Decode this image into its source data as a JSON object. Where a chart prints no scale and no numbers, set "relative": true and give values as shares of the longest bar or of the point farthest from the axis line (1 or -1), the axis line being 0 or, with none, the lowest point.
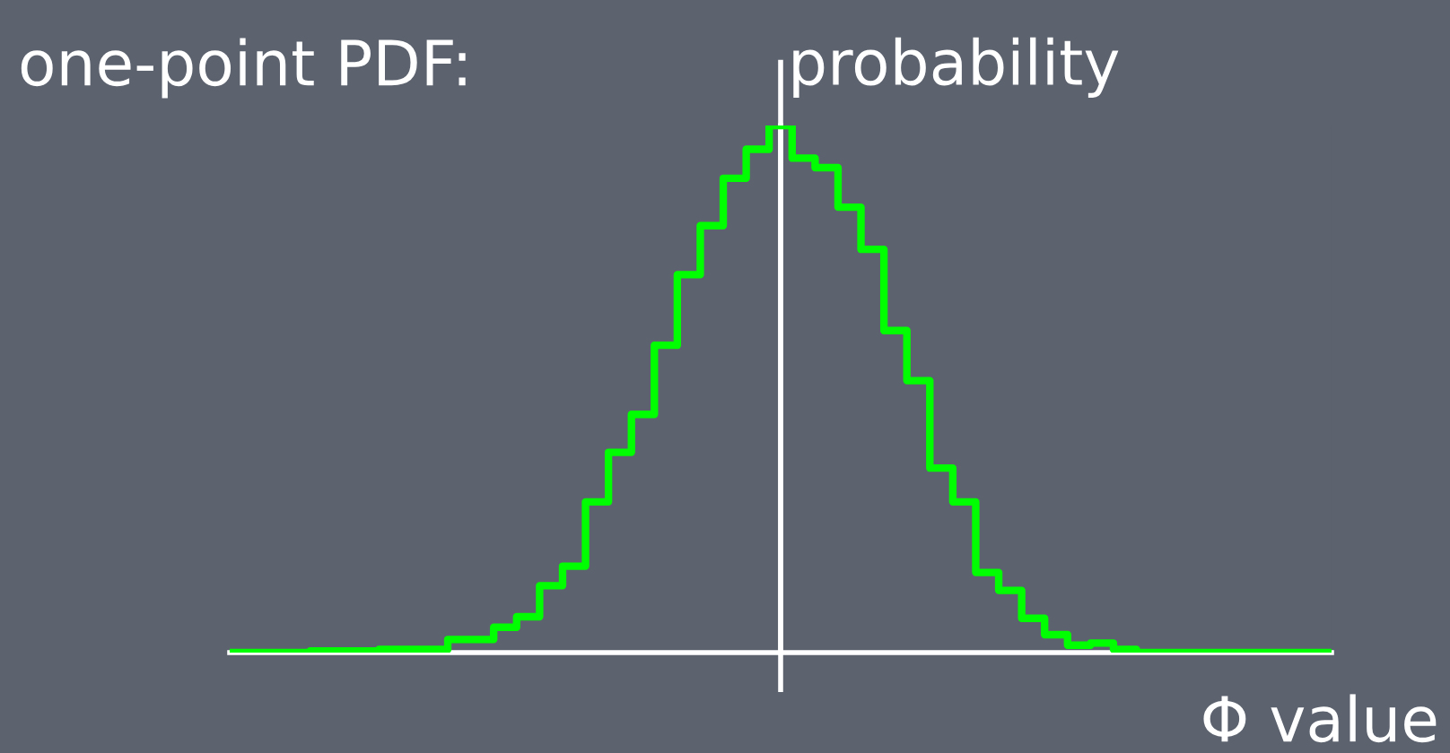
{
  "chart_data": {
    "type": "step",
    "title": "one-point PDF:",
    "xlabel": "Φ value",
    "ylabel": "probability",
    "relative": true,
    "categories": [
      null,
      null,
      null,
      null,
      null,
      null,
      null,
      null,
      null,
      null,
      null,
      null,
      null,
      null,
      null,
      null,
      null,
      null,
      null,
      null,
      null,
      null,
      null,
      null,
      null,
      null,
      null,
      null,
      null,
      null,
      null,
      null,
      null,
      null,
      null,
      null,
      null,
      null,
      null,
      null,
      null,
      null,
      null,
      null,
      null,
      null,
      null,
      null,
      null
    ],
    "series": [
      {
        "color": "#00ff00",
        "values": [
          0,
          0,
          0,
          0,
          0.003,
          0.003,
          0.003,
          0.006,
          0.006,
          0.006,
          0.025,
          0.025,
          0.048,
          0.068,
          0.127,
          0.164,
          0.286,
          0.38,
          0.452,
          0.583,
          0.717,
          0.81,
          0.9,
          0.955,
          1.0,
          0.938,
          0.92,
          0.845,
          0.765,
          0.611,
          0.516,
          0.35,
          0.286,
          0.152,
          0.118,
          0.065,
          0.034,
          0.014,
          0.018,
          0.006,
          0,
          0,
          0,
          0,
          0,
          0,
          0,
          0,
          0
        ]
      }
    ]
  }
}
